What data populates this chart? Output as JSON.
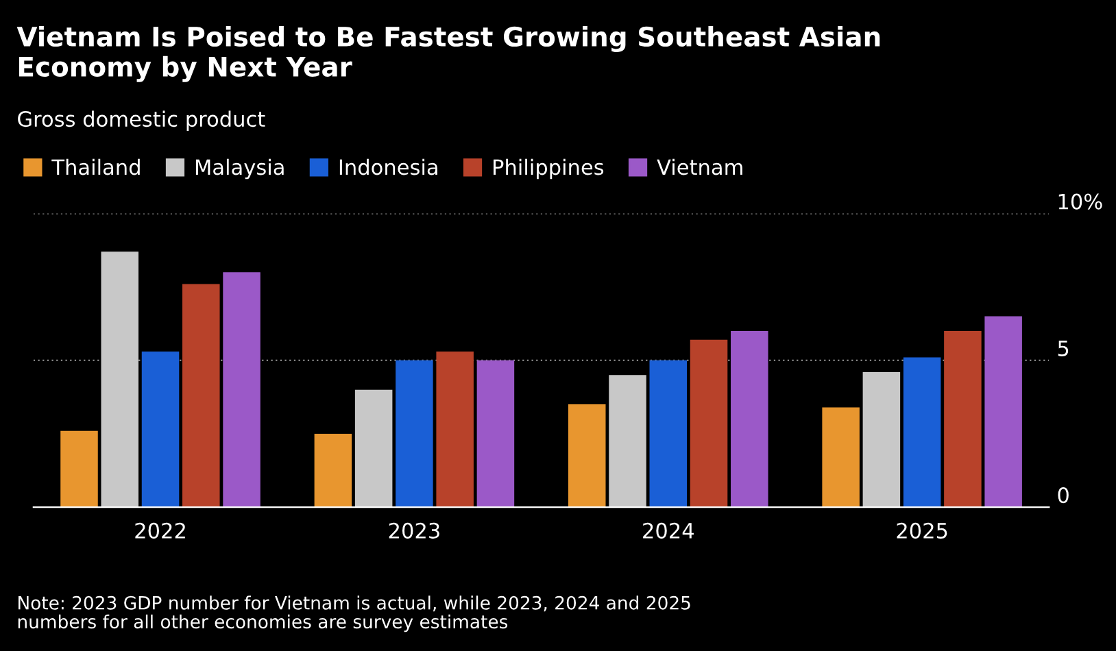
{
  "chart_data": {
    "type": "bar",
    "title": "Vietnam Is Poised to Be Fastest Growing Southeast Asian\nEconomy by Next Year",
    "subtitle": "Gross domestic product",
    "categories": [
      "2022",
      "2023",
      "2024",
      "2025"
    ],
    "series": [
      {
        "name": "Thailand",
        "color": "#e8962f",
        "values": [
          2.6,
          2.5,
          3.5,
          3.4
        ]
      },
      {
        "name": "Malaysia",
        "color": "#c8c8c8",
        "values": [
          8.7,
          4.0,
          4.5,
          4.6
        ]
      },
      {
        "name": "Indonesia",
        "color": "#1a5fd6",
        "values": [
          5.3,
          5.0,
          5.0,
          5.1
        ]
      },
      {
        "name": "Philippines",
        "color": "#b8422a",
        "values": [
          7.6,
          5.3,
          5.7,
          6.0
        ]
      },
      {
        "name": "Vietnam",
        "color": "#9b59c8",
        "values": [
          8.0,
          5.0,
          6.0,
          6.5
        ]
      }
    ],
    "ylim": [
      0,
      10
    ],
    "yticks": [
      0,
      5,
      {
        "value": 10,
        "label": "10%"
      }
    ],
    "grid": "y",
    "legend": "top left",
    "annotations": [
      "Note: 2023 GDP number for Vietnam is actual, while 2023, 2024 and 2025\nnumbers for all other economies are survey estimates"
    ]
  }
}
